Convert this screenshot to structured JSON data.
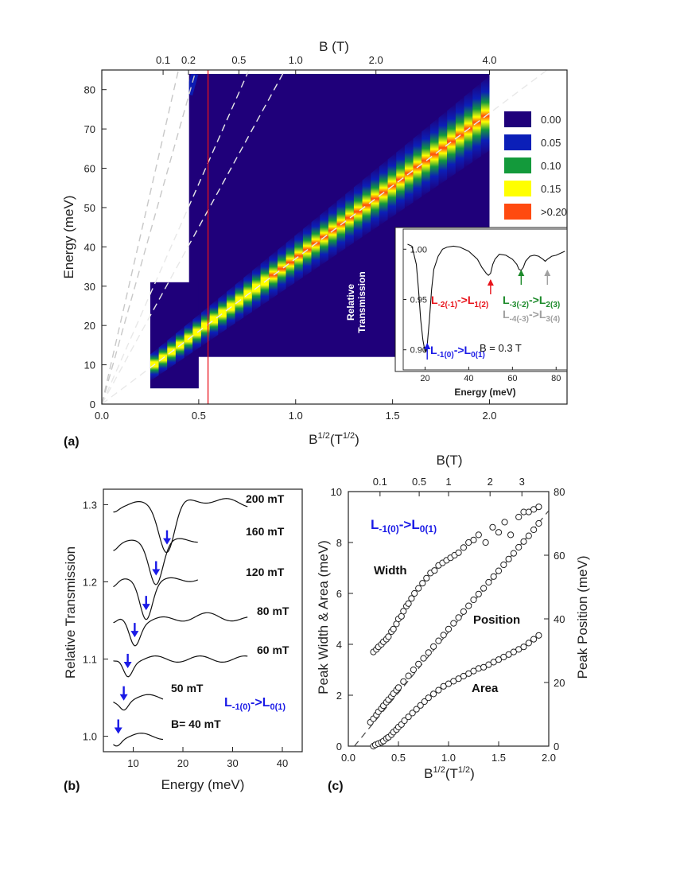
{
  "colors": {
    "bg": "#1f007a",
    "level_blue": "#0b1fb8",
    "level_green": "#139a3b",
    "level_yellow": "#ffff00",
    "level_red": "#ff4a10",
    "red_label": "#e8131b",
    "green_label": "#1c8a2a",
    "gray_label": "#a0a0a0",
    "blue_label": "#1a1ae6"
  },
  "chart_data": [
    {
      "id": "a",
      "type": "heatmap",
      "panel_label": "(a)",
      "xlabel_main": "B",
      "xlabel_sup1": "1/2",
      "xlabel_mid": "(T",
      "xlabel_sup2": "1/2",
      "xlabel_end": ")",
      "ylabel": "Energy (meV)",
      "top_xlabel": "B (T)",
      "xlim": [
        0,
        2.4
      ],
      "ylim": [
        0,
        85
      ],
      "x_ticks": [
        "0.0",
        "0.5",
        "1.0",
        "1.5",
        "2.0"
      ],
      "x_tick_values": [
        0,
        0.5,
        1.0,
        1.5,
        2.0
      ],
      "y_ticks": [
        "0",
        "10",
        "20",
        "30",
        "40",
        "50",
        "60",
        "70",
        "80"
      ],
      "y_tick_values": [
        0,
        10,
        20,
        30,
        40,
        50,
        60,
        70,
        80
      ],
      "top_ticks": [
        "0.1",
        "0.2",
        "0.5",
        "1.0",
        "2.0",
        "4.0"
      ],
      "top_tick_values_T": [
        0.1,
        0.2,
        0.5,
        1.0,
        2.0,
        4.0
      ],
      "colorbar": [
        {
          "label": "0.00",
          "color": "#1f007a"
        },
        {
          "label": "0.05",
          "color": "#0b1fb8"
        },
        {
          "label": "0.10",
          "color": "#139a3b"
        },
        {
          "label": "0.15",
          "color": "#ffff00"
        },
        {
          "label": ">0.20",
          "color": "#ff4a10"
        }
      ],
      "data_regions": [
        {
          "x": [
            0.45,
            2.0
          ],
          "y": [
            12,
            84
          ]
        },
        {
          "x": [
            0.25,
            0.5
          ],
          "y": [
            4,
            31
          ]
        }
      ],
      "main_ridge_slope_meV_per_sqrtT": 37,
      "guide_line_slopes": [
        37,
        90,
        112,
        175,
        215
      ],
      "red_line_x": 0.548,
      "inset": {
        "xlabel": "Energy (meV)",
        "ylabel_line1": "Relative",
        "ylabel_line2": "Transmission",
        "xlim": [
          10,
          85
        ],
        "ylim": [
          0.88,
          1.02
        ],
        "x_ticks": [
          "20",
          "40",
          "60",
          "80"
        ],
        "x_tick_values": [
          20,
          40,
          60,
          80
        ],
        "y_ticks": [
          "0.90",
          "0.95",
          "1.00"
        ],
        "y_tick_values": [
          0.9,
          0.95,
          1.0
        ],
        "field_label": "B = 0.3 T",
        "spectrum": {
          "x": [
            12,
            14,
            16,
            17,
            18,
            19,
            20,
            21,
            22,
            23,
            24,
            26,
            28,
            30,
            33,
            36,
            40,
            44,
            46,
            48,
            49,
            50,
            51,
            52,
            54,
            57,
            60,
            62,
            63,
            64,
            65,
            66,
            68,
            70,
            72,
            74,
            75,
            76,
            78,
            80,
            82,
            84
          ],
          "y": [
            1.005,
            1.003,
            0.985,
            0.96,
            0.93,
            0.91,
            0.898,
            0.905,
            0.93,
            0.96,
            0.98,
            0.993,
            1.0,
            1.002,
            1.003,
            1.002,
            0.998,
            0.99,
            0.982,
            0.976,
            0.974,
            0.976,
            0.985,
            0.99,
            0.995,
            0.994,
            0.99,
            0.985,
            0.98,
            0.979,
            0.982,
            0.988,
            0.993,
            0.994,
            0.993,
            0.99,
            0.988,
            0.99,
            0.993,
            0.994,
            0.996,
            0.998
          ]
        },
        "transitions": [
          {
            "energy": 21,
            "color": "#1a1ae6",
            "l1": "L",
            "s1": "-1(0)",
            "arrow": "->",
            "l2": "L",
            "s2": "0(1)"
          },
          {
            "energy": 50,
            "color": "#e8131b",
            "l1": "L",
            "s1": "-2(-1)",
            "arrow": "->",
            "l2": "L",
            "s2": "1(2)"
          },
          {
            "energy": 64,
            "color": "#1c8a2a",
            "l1": "L",
            "s1": "-3(-2)",
            "arrow": "->",
            "l2": "L",
            "s2": "2(3)"
          },
          {
            "energy": 76,
            "color": "#a0a0a0",
            "l1": "L",
            "s1": "-4(-3)",
            "arrow": "->",
            "l2": "L",
            "s2": "3(4)"
          }
        ]
      }
    },
    {
      "id": "b",
      "type": "line",
      "panel_label": "(b)",
      "xlabel": "Energy (meV)",
      "ylabel": "Relative Transmission",
      "xlim": [
        4,
        44
      ],
      "ylim": [
        0.98,
        1.32
      ],
      "x_ticks": [
        "10",
        "20",
        "30",
        "40"
      ],
      "x_tick_values": [
        10,
        20,
        30,
        40
      ],
      "y_ticks": [
        "1.0",
        "1.1",
        "1.2",
        "1.3"
      ],
      "y_tick_values": [
        1.0,
        1.1,
        1.2,
        1.3
      ],
      "transition_label": {
        "l1": "L",
        "s1": "-1(0)",
        "arrow": "->",
        "l2": "L",
        "s2": "0(1)"
      },
      "series": [
        {
          "name": "200 mT",
          "offset": 1.3,
          "dip": 16.8,
          "depth": 0.06,
          "width": 2.2,
          "x_end": 33
        },
        {
          "name": "160 mT",
          "offset": 1.25,
          "dip": 14.6,
          "depth": 0.05,
          "width": 1.9,
          "x_end": 23
        },
        {
          "name": "120 mT",
          "offset": 1.2,
          "dip": 12.6,
          "depth": 0.045,
          "width": 1.7,
          "x_end": 23
        },
        {
          "name": "80 mT",
          "offset": 1.15,
          "dip": 10.3,
          "depth": 0.03,
          "width": 1.5,
          "x_end": 33
        },
        {
          "name": "60 mT",
          "offset": 1.1,
          "dip": 8.9,
          "depth": 0.02,
          "width": 1.3,
          "x_end": 33
        },
        {
          "name": "50 mT",
          "offset": 1.05,
          "dip": 8.1,
          "depth": 0.012,
          "width": 1.2,
          "x_end": 16
        },
        {
          "name": "B= 40 mT",
          "offset": 1.0,
          "dip": 7.0,
          "depth": 0.005,
          "width": 1.0,
          "x_end": 16
        }
      ]
    },
    {
      "id": "c",
      "type": "scatter",
      "panel_label": "(c)",
      "xlabel_main": "B",
      "xlabel_sup1": "1/2",
      "xlabel_mid": "(T",
      "xlabel_sup2": "1/2",
      "xlabel_end": ")",
      "ylabel_left": "Peak Width &  Area (meV)",
      "ylabel_right": "Peak Position (meV)",
      "top_xlabel": "B(T)",
      "xlim": [
        0,
        2.0
      ],
      "ylim_left": [
        0,
        10
      ],
      "ylim_right": [
        0,
        80
      ],
      "x_ticks": [
        "0.0",
        "0.5",
        "1.0",
        "1.5",
        "2.0"
      ],
      "x_tick_values": [
        0,
        0.5,
        1.0,
        1.5,
        2.0
      ],
      "y_left_ticks": [
        "0",
        "2",
        "4",
        "6",
        "8",
        "10"
      ],
      "y_left_tick_values": [
        0,
        2,
        4,
        6,
        8,
        10
      ],
      "y_right_ticks": [
        "0",
        "20",
        "40",
        "60",
        "80"
      ],
      "y_right_tick_values": [
        0,
        20,
        40,
        60,
        80
      ],
      "top_ticks": [
        "0.1",
        "0.5",
        "1",
        "2",
        "3"
      ],
      "top_tick_values_T": [
        0.1,
        0.5,
        1,
        2,
        3
      ],
      "transition_label": {
        "l1": "L",
        "s1": "-1(0)",
        "arrow": "->",
        "l2": "L",
        "s2": "0(1)"
      },
      "series": [
        {
          "name": "Width",
          "x": [
            0.25,
            0.28,
            0.3,
            0.33,
            0.35,
            0.38,
            0.4,
            0.43,
            0.45,
            0.48,
            0.5,
            0.53,
            0.55,
            0.58,
            0.6,
            0.63,
            0.66,
            0.7,
            0.74,
            0.78,
            0.82,
            0.86,
            0.9,
            0.94,
            0.98,
            1.02,
            1.06,
            1.1,
            1.15,
            1.2,
            1.25,
            1.3,
            1.37,
            1.44,
            1.5,
            1.56,
            1.62,
            1.7,
            1.75,
            1.8,
            1.85,
            1.9
          ],
          "y": [
            3.7,
            3.8,
            3.9,
            4.0,
            4.1,
            4.2,
            4.3,
            4.5,
            4.6,
            4.8,
            5.0,
            5.1,
            5.3,
            5.5,
            5.6,
            5.8,
            6.0,
            6.2,
            6.4,
            6.6,
            6.8,
            6.9,
            7.1,
            7.2,
            7.3,
            7.4,
            7.5,
            7.6,
            7.8,
            8.0,
            8.1,
            8.3,
            8.0,
            8.6,
            8.4,
            8.8,
            8.3,
            9.0,
            9.2,
            9.2,
            9.3,
            9.4
          ]
        },
        {
          "name": "Position",
          "x": [
            0.22,
            0.25,
            0.28,
            0.3,
            0.33,
            0.35,
            0.38,
            0.4,
            0.43,
            0.45,
            0.48,
            0.5,
            0.55,
            0.6,
            0.65,
            0.7,
            0.75,
            0.8,
            0.85,
            0.9,
            0.95,
            1.0,
            1.05,
            1.1,
            1.15,
            1.2,
            1.25,
            1.3,
            1.35,
            1.4,
            1.45,
            1.5,
            1.55,
            1.6,
            1.65,
            1.7,
            1.75,
            1.8,
            1.85,
            1.9
          ],
          "y_right": [
            7.5,
            8.6,
            9.8,
            10.8,
            11.8,
            12.7,
            13.8,
            14.6,
            15.6,
            16.5,
            17.6,
            18.4,
            20.3,
            22.1,
            24.0,
            25.8,
            27.6,
            29.4,
            31.3,
            33.1,
            34.9,
            36.8,
            38.6,
            40.4,
            42.3,
            44.1,
            46.0,
            47.8,
            49.6,
            51.5,
            53.3,
            55.1,
            57.0,
            58.8,
            60.6,
            62.5,
            64.3,
            66.1,
            68.0,
            70.0
          ]
        },
        {
          "name": "Area",
          "x": [
            0.25,
            0.27,
            0.3,
            0.33,
            0.35,
            0.38,
            0.4,
            0.43,
            0.45,
            0.48,
            0.5,
            0.53,
            0.56,
            0.6,
            0.64,
            0.68,
            0.72,
            0.76,
            0.8,
            0.85,
            0.9,
            0.95,
            1.0,
            1.05,
            1.1,
            1.15,
            1.2,
            1.25,
            1.3,
            1.35,
            1.4,
            1.45,
            1.5,
            1.55,
            1.6,
            1.65,
            1.7,
            1.75,
            1.8,
            1.85,
            1.9
          ],
          "y": [
            0.0,
            0.05,
            0.1,
            0.15,
            0.2,
            0.3,
            0.35,
            0.45,
            0.55,
            0.65,
            0.75,
            0.85,
            1.0,
            1.15,
            1.3,
            1.45,
            1.6,
            1.75,
            1.9,
            2.05,
            2.2,
            2.35,
            2.45,
            2.55,
            2.65,
            2.75,
            2.85,
            2.95,
            3.05,
            3.1,
            3.2,
            3.3,
            3.4,
            3.5,
            3.6,
            3.7,
            3.8,
            3.9,
            4.05,
            4.2,
            4.35
          ]
        }
      ],
      "guide_line": {
        "x": [
          0.06,
          2.0
        ],
        "y_right": [
          0,
          74
        ]
      }
    }
  ]
}
